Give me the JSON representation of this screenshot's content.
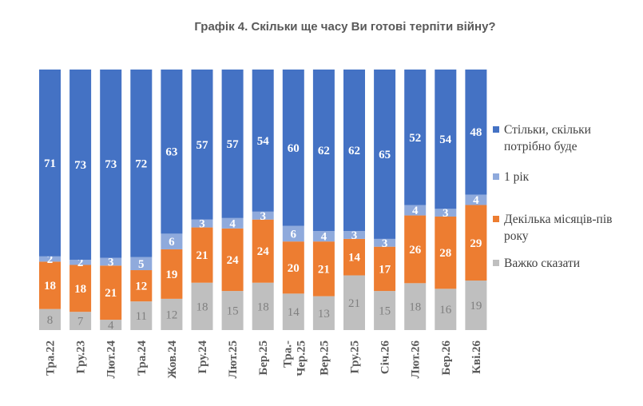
{
  "chart_data": {
    "type": "bar",
    "stacked": "percent",
    "title": "Графік 4. Скільки ще часу Ви готові терпіти війну?",
    "categories": [
      "Тра.22",
      "Гру.23",
      "Лют.24",
      "Тра.24",
      "Жов.24",
      "Гру.24",
      "Лют.25",
      "Бер.25",
      "Тра.-\nЧер.25",
      "Вер.25",
      "Гру.25",
      "Січ.26",
      "Лют.26",
      "Бер.26",
      "Кві.26"
    ],
    "series": [
      {
        "name": "Важко сказати",
        "color": "#bfbfbf",
        "values": [
          8,
          7,
          4,
          11,
          12,
          18,
          15,
          18,
          14,
          13,
          21,
          15,
          18,
          16,
          19
        ]
      },
      {
        "name": "Декілька місяців-пів року",
        "color": "#ed7d31",
        "values": [
          18,
          18,
          21,
          12,
          19,
          21,
          24,
          24,
          20,
          21,
          14,
          17,
          26,
          28,
          29
        ]
      },
      {
        "name": "1 рік",
        "color": "#8faadc",
        "values": [
          2,
          2,
          3,
          5,
          6,
          3,
          4,
          3,
          6,
          4,
          3,
          3,
          4,
          3,
          4
        ]
      },
      {
        "name": "Стільки, скільки потрібно буде",
        "color": "#4472c4",
        "values": [
          71,
          73,
          73,
          72,
          63,
          57,
          57,
          54,
          60,
          62,
          62,
          65,
          52,
          54,
          48
        ]
      }
    ],
    "legend": "right",
    "grid": false,
    "data_labels": true
  }
}
